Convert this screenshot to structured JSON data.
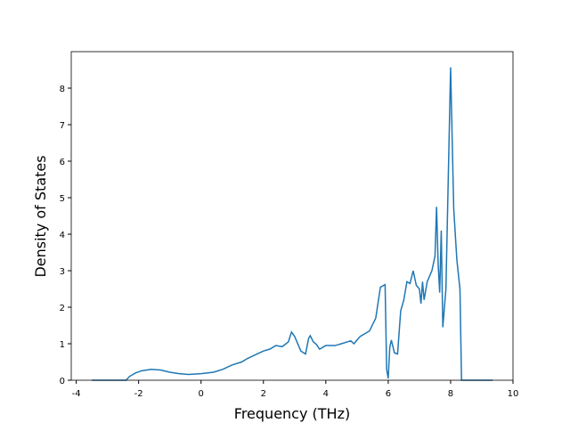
{
  "chart_data": {
    "type": "line",
    "x_label": "Frequency (THz)",
    "y_label": "Density of States",
    "x": [
      -3.5,
      -2.4,
      -2.3,
      -2.1,
      -1.9,
      -1.6,
      -1.3,
      -1.0,
      -0.7,
      -0.4,
      0.0,
      0.4,
      0.7,
      1.0,
      1.3,
      1.5,
      1.8,
      2.0,
      2.2,
      2.4,
      2.6,
      2.8,
      2.9,
      3.0,
      3.2,
      3.35,
      3.45,
      3.5,
      3.6,
      3.7,
      3.8,
      4.0,
      4.3,
      4.5,
      4.8,
      4.9,
      5.1,
      5.4,
      5.6,
      5.75,
      5.9,
      5.95,
      6.0,
      6.05,
      6.1,
      6.2,
      6.3,
      6.4,
      6.5,
      6.6,
      6.7,
      6.8,
      6.9,
      7.0,
      7.05,
      7.1,
      7.15,
      7.25,
      7.4,
      7.5,
      7.55,
      7.6,
      7.65,
      7.7,
      7.75,
      7.85,
      8.0,
      8.1,
      8.2,
      8.3,
      8.35,
      9.35
    ],
    "series": [
      {
        "color": "#1f77b4",
        "values": [
          0,
          0,
          0.1,
          0.2,
          0.26,
          0.3,
          0.28,
          0.22,
          0.18,
          0.16,
          0.18,
          0.22,
          0.3,
          0.42,
          0.5,
          0.6,
          0.72,
          0.8,
          0.85,
          0.95,
          0.92,
          1.05,
          1.32,
          1.2,
          0.8,
          0.72,
          1.15,
          1.22,
          1.05,
          0.98,
          0.85,
          0.95,
          0.95,
          1.0,
          1.08,
          1.0,
          1.2,
          1.35,
          1.7,
          2.55,
          2.62,
          0.3,
          0.05,
          0.9,
          1.1,
          0.75,
          0.72,
          1.9,
          2.2,
          2.7,
          2.65,
          3.0,
          2.6,
          2.5,
          2.1,
          2.7,
          2.2,
          2.7,
          3.0,
          3.4,
          4.75,
          3.2,
          2.4,
          4.1,
          1.45,
          2.5,
          8.57,
          4.7,
          3.3,
          2.5,
          0,
          0
        ]
      }
    ],
    "xlim": [
      -4.16,
      10.0
    ],
    "ylim": [
      0,
      9.0
    ],
    "xticks": [
      -4,
      -2,
      0,
      2,
      4,
      6,
      8,
      10
    ],
    "yticks": [
      0,
      1,
      2,
      3,
      4,
      5,
      6,
      7,
      8
    ]
  }
}
